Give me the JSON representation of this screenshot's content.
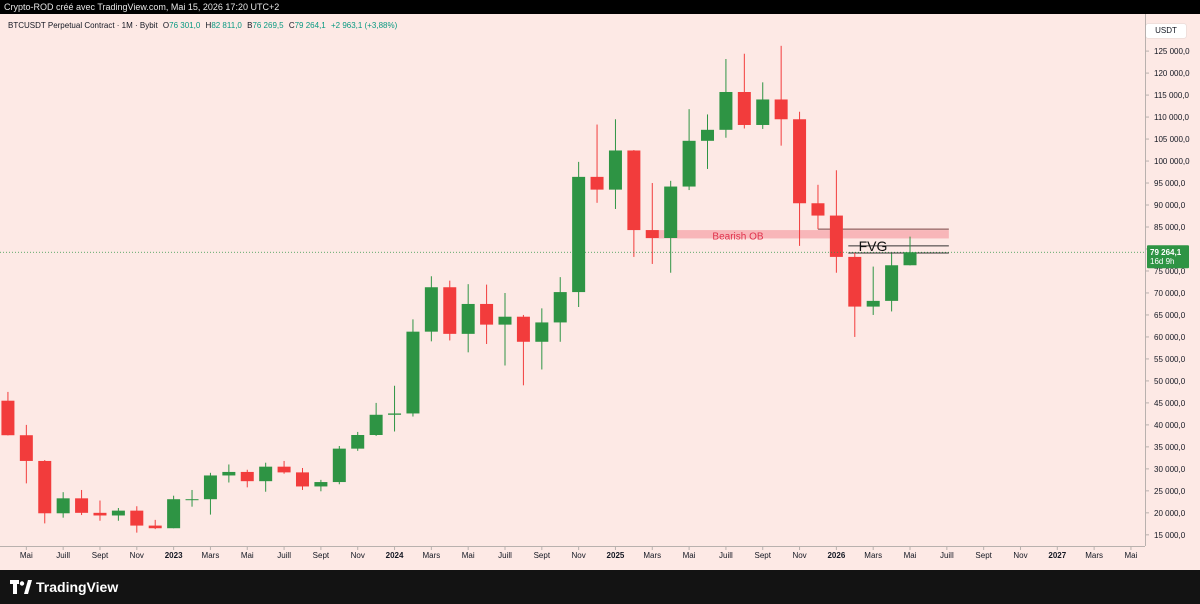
{
  "topbar": {
    "text": "Crypto-ROD créé avec TradingView.com, Mai 15, 2026 17:20 UTC+2"
  },
  "legend": {
    "symbol": "BTCUSDT Perpetual Contract · 1M · Bybit",
    "open_label": "O",
    "open": "76 301,0",
    "high_label": "H",
    "high": "82 811,0",
    "low_label": "B",
    "low": "76 269,5",
    "close_label": "C",
    "close": "79 264,1",
    "change": "+2 963,1 (+3,88%)"
  },
  "currency": "USDT",
  "last_price": {
    "value": "79 264,1",
    "countdown": "16d 9h"
  },
  "annotations": {
    "bearish_ob": "Bearish OB",
    "fvg": "FVG"
  },
  "brand": {
    "name": "TradingView",
    "icon": "tradingview-logo-icon"
  },
  "colors": {
    "up": "#2e9444",
    "down": "#f23c3c",
    "background": "#fde9e5",
    "ob_zone": "#f6a4aa",
    "ob_text": "#e0314b",
    "last_price": "#2e9444"
  },
  "chart_data": {
    "type": "candlestick",
    "title": "",
    "xlabel": "",
    "ylabel": "",
    "ylim": [
      11000,
      128500
    ],
    "grid": false,
    "y_ticks": [
      15000,
      20000,
      25000,
      30000,
      35000,
      40000,
      45000,
      50000,
      55000,
      60000,
      65000,
      70000,
      75000,
      80000,
      85000,
      90000,
      95000,
      100000,
      105000,
      110000,
      115000,
      120000,
      125000
    ],
    "y_tick_labels": [
      "15 000,0",
      "20 000,0",
      "25 000,0",
      "30 000,0",
      "35 000,0",
      "40 000,0",
      "45 000,0",
      "50 000,0",
      "55 000,0",
      "60 000,0",
      "65 000,0",
      "70 000,0",
      "75 000,0",
      "80 000,0",
      "85 000,0",
      "90 000,0",
      "95 000,0",
      "100 000,0",
      "105 000,0",
      "110 000,0",
      "115 000,0",
      "120 000,0",
      "125 000,0"
    ],
    "x_ticks": [
      {
        "date": "2022-05",
        "label": "Mai",
        "bold": false
      },
      {
        "date": "2022-07",
        "label": "Juill",
        "bold": false
      },
      {
        "date": "2022-09",
        "label": "Sept",
        "bold": false
      },
      {
        "date": "2022-11",
        "label": "Nov",
        "bold": false
      },
      {
        "date": "2023-01",
        "label": "2023",
        "bold": true
      },
      {
        "date": "2023-03",
        "label": "Mars",
        "bold": false
      },
      {
        "date": "2023-05",
        "label": "Mai",
        "bold": false
      },
      {
        "date": "2023-07",
        "label": "Juill",
        "bold": false
      },
      {
        "date": "2023-09",
        "label": "Sept",
        "bold": false
      },
      {
        "date": "2023-11",
        "label": "Nov",
        "bold": false
      },
      {
        "date": "2024-01",
        "label": "2024",
        "bold": true
      },
      {
        "date": "2024-03",
        "label": "Mars",
        "bold": false
      },
      {
        "date": "2024-05",
        "label": "Mai",
        "bold": false
      },
      {
        "date": "2024-07",
        "label": "Juill",
        "bold": false
      },
      {
        "date": "2024-09",
        "label": "Sept",
        "bold": false
      },
      {
        "date": "2024-11",
        "label": "Nov",
        "bold": false
      },
      {
        "date": "2025-01",
        "label": "2025",
        "bold": true
      },
      {
        "date": "2025-03",
        "label": "Mars",
        "bold": false
      },
      {
        "date": "2025-05",
        "label": "Mai",
        "bold": false
      },
      {
        "date": "2025-07",
        "label": "Juill",
        "bold": false
      },
      {
        "date": "2025-09",
        "label": "Sept",
        "bold": false
      },
      {
        "date": "2025-11",
        "label": "Nov",
        "bold": false
      },
      {
        "date": "2026-01",
        "label": "2026",
        "bold": true
      },
      {
        "date": "2026-03",
        "label": "Mars",
        "bold": false
      },
      {
        "date": "2026-05",
        "label": "Mai",
        "bold": false
      },
      {
        "date": "2026-07",
        "label": "Juill",
        "bold": false
      },
      {
        "date": "2026-09",
        "label": "Sept",
        "bold": false
      },
      {
        "date": "2026-11",
        "label": "Nov",
        "bold": false
      },
      {
        "date": "2027-01",
        "label": "2027",
        "bold": true
      },
      {
        "date": "2027-03",
        "label": "Mars",
        "bold": false
      },
      {
        "date": "2027-05",
        "label": "Mai",
        "bold": false
      }
    ],
    "candles": [
      {
        "date": "2022-04",
        "o": 45500,
        "h": 47500,
        "l": 37600,
        "c": 37650
      },
      {
        "date": "2022-05",
        "o": 37650,
        "h": 40000,
        "l": 26700,
        "c": 31800
      },
      {
        "date": "2022-06",
        "o": 31800,
        "h": 32000,
        "l": 17600,
        "c": 19900
      },
      {
        "date": "2022-07",
        "o": 19900,
        "h": 24700,
        "l": 18900,
        "c": 23300
      },
      {
        "date": "2022-08",
        "o": 23300,
        "h": 25200,
        "l": 19500,
        "c": 20000
      },
      {
        "date": "2022-09",
        "o": 20000,
        "h": 22800,
        "l": 18200,
        "c": 19400
      },
      {
        "date": "2022-10",
        "o": 19400,
        "h": 21100,
        "l": 18200,
        "c": 20500
      },
      {
        "date": "2022-11",
        "o": 20500,
        "h": 21500,
        "l": 15500,
        "c": 17100
      },
      {
        "date": "2022-12",
        "o": 17100,
        "h": 18400,
        "l": 16300,
        "c": 16500
      },
      {
        "date": "2023-01",
        "o": 16500,
        "h": 23900,
        "l": 16500,
        "c": 23100
      },
      {
        "date": "2023-02",
        "o": 23100,
        "h": 25200,
        "l": 21400,
        "c": 23100
      },
      {
        "date": "2023-03",
        "o": 23100,
        "h": 29100,
        "l": 19600,
        "c": 28500
      },
      {
        "date": "2023-04",
        "o": 28500,
        "h": 31000,
        "l": 26900,
        "c": 29300
      },
      {
        "date": "2023-05",
        "o": 29300,
        "h": 29800,
        "l": 25800,
        "c": 27200
      },
      {
        "date": "2023-06",
        "o": 27200,
        "h": 31400,
        "l": 24800,
        "c": 30500
      },
      {
        "date": "2023-07",
        "o": 30500,
        "h": 31800,
        "l": 28900,
        "c": 29200
      },
      {
        "date": "2023-08",
        "o": 29200,
        "h": 30200,
        "l": 25200,
        "c": 26000
      },
      {
        "date": "2023-09",
        "o": 26000,
        "h": 27500,
        "l": 24900,
        "c": 27000
      },
      {
        "date": "2023-10",
        "o": 27000,
        "h": 35200,
        "l": 26500,
        "c": 34600
      },
      {
        "date": "2023-11",
        "o": 34600,
        "h": 38400,
        "l": 34100,
        "c": 37700
      },
      {
        "date": "2023-12",
        "o": 37700,
        "h": 45000,
        "l": 37500,
        "c": 42300
      },
      {
        "date": "2024-01",
        "o": 42300,
        "h": 48900,
        "l": 38500,
        "c": 42600
      },
      {
        "date": "2024-02",
        "o": 42600,
        "h": 64000,
        "l": 41900,
        "c": 61200
      },
      {
        "date": "2024-03",
        "o": 61200,
        "h": 73800,
        "l": 59000,
        "c": 71300
      },
      {
        "date": "2024-04",
        "o": 71300,
        "h": 72800,
        "l": 59200,
        "c": 60700
      },
      {
        "date": "2024-05",
        "o": 60700,
        "h": 72000,
        "l": 56500,
        "c": 67500
      },
      {
        "date": "2024-06",
        "o": 67500,
        "h": 71900,
        "l": 58400,
        "c": 62800
      },
      {
        "date": "2024-07",
        "o": 62800,
        "h": 70000,
        "l": 53500,
        "c": 64600
      },
      {
        "date": "2024-08",
        "o": 64600,
        "h": 65000,
        "l": 49000,
        "c": 58900
      },
      {
        "date": "2024-09",
        "o": 58900,
        "h": 66500,
        "l": 52600,
        "c": 63300
      },
      {
        "date": "2024-10",
        "o": 63300,
        "h": 73600,
        "l": 58900,
        "c": 70200
      },
      {
        "date": "2024-11",
        "o": 70200,
        "h": 99800,
        "l": 66800,
        "c": 96400
      },
      {
        "date": "2024-12",
        "o": 96400,
        "h": 108300,
        "l": 90500,
        "c": 93500
      },
      {
        "date": "2025-01",
        "o": 93500,
        "h": 109500,
        "l": 89100,
        "c": 102400
      },
      {
        "date": "2025-02",
        "o": 102400,
        "h": 102500,
        "l": 78200,
        "c": 84300
      },
      {
        "date": "2025-03",
        "o": 84300,
        "h": 95000,
        "l": 76600,
        "c": 82500
      },
      {
        "date": "2025-04",
        "o": 82500,
        "h": 95500,
        "l": 74600,
        "c": 94200
      },
      {
        "date": "2025-05",
        "o": 94200,
        "h": 111800,
        "l": 93400,
        "c": 104600
      },
      {
        "date": "2025-06",
        "o": 104600,
        "h": 110600,
        "l": 98200,
        "c": 107100
      },
      {
        "date": "2025-07",
        "o": 107100,
        "h": 123200,
        "l": 105300,
        "c": 115700
      },
      {
        "date": "2025-08",
        "o": 115700,
        "h": 124400,
        "l": 107400,
        "c": 108200
      },
      {
        "date": "2025-09",
        "o": 108200,
        "h": 117900,
        "l": 107300,
        "c": 114000
      },
      {
        "date": "2025-10",
        "o": 114000,
        "h": 126200,
        "l": 103500,
        "c": 109500
      },
      {
        "date": "2025-11",
        "o": 109500,
        "h": 111200,
        "l": 80700,
        "c": 90400
      },
      {
        "date": "2025-12",
        "o": 90400,
        "h": 94600,
        "l": 84500,
        "c": 87600
      },
      {
        "date": "2026-01",
        "o": 87600,
        "h": 97900,
        "l": 74600,
        "c": 78200
      },
      {
        "date": "2026-02",
        "o": 78200,
        "h": 79100,
        "l": 60000,
        "c": 66900
      },
      {
        "date": "2026-03",
        "o": 66900,
        "h": 76000,
        "l": 65000,
        "c": 68200
      },
      {
        "date": "2026-04",
        "o": 68200,
        "h": 79000,
        "l": 65800,
        "c": 76300
      },
      {
        "date": "2026-05",
        "o": 76301.0,
        "h": 82811.0,
        "l": 76269.5,
        "c": 79264.1
      }
    ],
    "zones": [
      {
        "label": "Bearish OB",
        "from": "2025-03",
        "to": "2026-07",
        "low": 82400,
        "high": 84300
      },
      {
        "label": "FVG",
        "from": "2026-02",
        "to": "2026-07",
        "low": 79100,
        "high": 80700
      }
    ],
    "last_price": 79264.1
  }
}
